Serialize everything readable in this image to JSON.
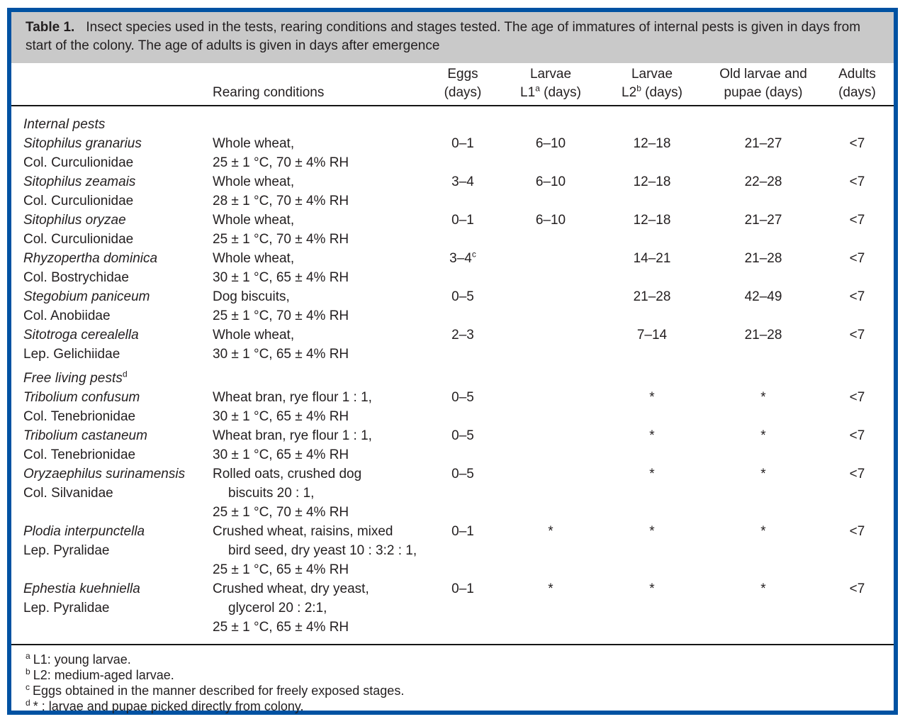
{
  "theme": {
    "frame_border": "#0052a2",
    "caption_bg": "#c9c9c9",
    "text": "#231f20",
    "rule": "#161616"
  },
  "caption": {
    "label": "Table 1.",
    "text": "Insect species used in the tests, rearing conditions and stages tested. The age of immatures of internal pests is given in days from start of the colony. The age of adults is given in days after emergence"
  },
  "headers": {
    "species": "",
    "rearing": "Rearing conditions",
    "eggs": {
      "line1": "Eggs",
      "line2": "(days)"
    },
    "l1": {
      "line1": "Larvae",
      "pre": "L1",
      "sup": "a",
      "post": " (days)"
    },
    "l2": {
      "line1": "Larvae",
      "pre": "L2",
      "sup": "b",
      "post": " (days)"
    },
    "old": {
      "line1": "Old larvae and",
      "line2": "pupae (days)"
    },
    "adults": {
      "line1": "Adults",
      "line2": "(days)"
    }
  },
  "rows": [
    {
      "type": "section",
      "label": "Internal pests",
      "sup": ""
    },
    {
      "type": "species",
      "name": "Sitophilus granarius",
      "family": "Col. Curculionidae",
      "rearing": [
        {
          "t": "Whole wheat,"
        },
        {
          "t": "25 ± 1 °C, 70 ± 4% RH"
        }
      ],
      "eggs": "0–1",
      "eggs_sup": "",
      "l1": "6–10",
      "l2": "12–18",
      "old": "21–27",
      "adults": "<7"
    },
    {
      "type": "species",
      "name": "Sitophilus zeamais",
      "family": "Col. Curculionidae",
      "rearing": [
        {
          "t": "Whole wheat,"
        },
        {
          "t": "28 ± 1 °C, 70 ± 4% RH"
        }
      ],
      "eggs": "3–4",
      "eggs_sup": "",
      "l1": "6–10",
      "l2": "12–18",
      "old": "22–28",
      "adults": "<7"
    },
    {
      "type": "species",
      "name": "Sitophilus oryzae",
      "family": "Col. Curculionidae",
      "rearing": [
        {
          "t": "Whole wheat,"
        },
        {
          "t": "25 ± 1 °C, 70 ± 4% RH"
        }
      ],
      "eggs": "0–1",
      "eggs_sup": "",
      "l1": "6–10",
      "l2": "12–18",
      "old": "21–27",
      "adults": "<7"
    },
    {
      "type": "species",
      "name": "Rhyzopertha dominica",
      "family": "Col. Bostrychidae",
      "rearing": [
        {
          "t": "Whole wheat,"
        },
        {
          "t": "30 ± 1 °C, 65 ± 4% RH"
        }
      ],
      "eggs": "3–4",
      "eggs_sup": "c",
      "l1": "",
      "l2": "14–21",
      "old": "21–28",
      "adults": "<7"
    },
    {
      "type": "species",
      "name": "Stegobium paniceum",
      "family": "Col. Anobiidae",
      "rearing": [
        {
          "t": "Dog biscuits,"
        },
        {
          "t": "25 ± 1 °C, 70 ± 4% RH"
        }
      ],
      "eggs": "0–5",
      "eggs_sup": "",
      "l1": "",
      "l2": "21–28",
      "old": "42–49",
      "adults": "<7"
    },
    {
      "type": "species",
      "name": "Sitotroga cerealella",
      "family": "Lep. Gelichiidae",
      "rearing": [
        {
          "t": "Whole wheat,"
        },
        {
          "t": "30 ± 1 °C, 65 ± 4% RH"
        }
      ],
      "eggs": "2–3",
      "eggs_sup": "",
      "l1": "",
      "l2": "7–14",
      "old": "21–28",
      "adults": "<7"
    },
    {
      "type": "section",
      "label": "Free living pests",
      "sup": "d"
    },
    {
      "type": "species",
      "name": "Tribolium confusum",
      "family": "Col. Tenebrionidae",
      "rearing": [
        {
          "t": "Wheat bran, rye flour 1 : 1,"
        },
        {
          "t": "30 ± 1 °C, 65 ± 4% RH"
        }
      ],
      "eggs": "0–5",
      "eggs_sup": "",
      "l1": "",
      "l2": "*",
      "old": "*",
      "adults": "<7"
    },
    {
      "type": "species",
      "name": "Tribolium castaneum",
      "family": "Col. Tenebrionidae",
      "rearing": [
        {
          "t": "Wheat bran, rye flour 1 : 1,"
        },
        {
          "t": "30 ± 1 °C, 65 ± 4% RH"
        }
      ],
      "eggs": "0–5",
      "eggs_sup": "",
      "l1": "",
      "l2": "*",
      "old": "*",
      "adults": "<7"
    },
    {
      "type": "species",
      "name": "Oryzaephilus surinamensis",
      "family": "Col. Silvanidae",
      "rearing": [
        {
          "t": "Rolled oats, crushed dog"
        },
        {
          "t": "biscuits 20 : 1,",
          "indent": true
        },
        {
          "t": "25 ± 1 °C, 70 ± 4% RH"
        }
      ],
      "eggs": "0–5",
      "eggs_sup": "",
      "l1": "",
      "l2": "*",
      "old": "*",
      "adults": "<7"
    },
    {
      "type": "species",
      "name": "Plodia interpunctella",
      "family": "Lep. Pyralidae",
      "rearing": [
        {
          "t": "Crushed wheat, raisins, mixed"
        },
        {
          "t": "bird seed, dry yeast 10 : 3:2 : 1,",
          "indent": true
        },
        {
          "t": "25 ± 1 °C, 65 ± 4% RH"
        }
      ],
      "eggs": "0–1",
      "eggs_sup": "",
      "l1": "*",
      "l2": "*",
      "old": "*",
      "adults": "<7"
    },
    {
      "type": "species",
      "name": "Ephestia kuehniella",
      "family": "Lep. Pyralidae",
      "rearing": [
        {
          "t": "Crushed wheat, dry yeast,"
        },
        {
          "t": "glycerol 20 : 2:1,",
          "indent": true
        },
        {
          "t": "25 ± 1 °C, 65 ± 4% RH"
        }
      ],
      "eggs": "0–1",
      "eggs_sup": "",
      "l1": "*",
      "l2": "*",
      "old": "*",
      "adults": "<7"
    }
  ],
  "footnotes": [
    {
      "sup": "a",
      "text": "L1: young larvae."
    },
    {
      "sup": "b",
      "text": "L2: medium-aged larvae."
    },
    {
      "sup": "c",
      "text": "Eggs obtained in the manner described for freely exposed stages."
    },
    {
      "sup": "d",
      "text": "* : larvae and pupae picked directly from colony."
    }
  ]
}
